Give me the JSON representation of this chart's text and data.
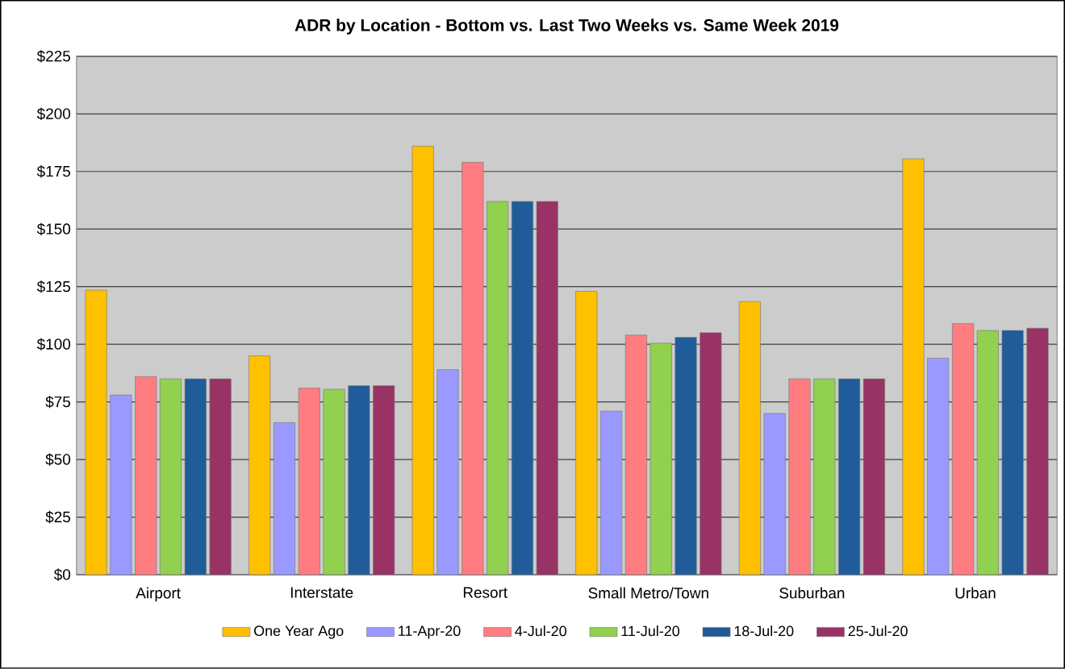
{
  "chart_data": {
    "type": "bar",
    "title": "ADR by Location - Bottom vs. Last Two Weeks vs. Same Week 2019",
    "categories": [
      "Airport",
      "Interstate",
      "Resort",
      "Small Metro/Town",
      "Suburban",
      "Urban"
    ],
    "series": [
      {
        "name": "One Year Ago",
        "color": "#ffc000",
        "values": [
          123.5,
          95,
          186,
          123,
          118.5,
          180.5
        ]
      },
      {
        "name": "11-Apr-20",
        "color": "#9999ff",
        "values": [
          78,
          66,
          89,
          71,
          70,
          94
        ]
      },
      {
        "name": "4-Jul-20",
        "color": "#ff7c80",
        "values": [
          86,
          81,
          179,
          104,
          85,
          109
        ]
      },
      {
        "name": "11-Jul-20",
        "color": "#92d050",
        "values": [
          85,
          80.5,
          162,
          100.5,
          85,
          106
        ]
      },
      {
        "name": "18-Jul-20",
        "color": "#1f5c99",
        "values": [
          85,
          82,
          162,
          103,
          85,
          106
        ]
      },
      {
        "name": "25-Jul-20",
        "color": "#993366",
        "values": [
          85,
          82,
          162,
          105,
          85,
          107
        ]
      }
    ],
    "ylim": [
      0,
      225
    ],
    "yticks": [
      {
        "value": 0,
        "label": "$0"
      },
      {
        "value": 25,
        "label": "$25"
      },
      {
        "value": 50,
        "label": "$50"
      },
      {
        "value": 75,
        "label": "$75"
      },
      {
        "value": 100,
        "label": "$100"
      },
      {
        "value": 125,
        "label": "$125"
      },
      {
        "value": 150,
        "label": "$150"
      },
      {
        "value": 175,
        "label": "$175"
      },
      {
        "value": 200,
        "label": "$200"
      },
      {
        "value": 225,
        "label": "$225"
      }
    ],
    "grid": "y",
    "legend": "bottom"
  }
}
